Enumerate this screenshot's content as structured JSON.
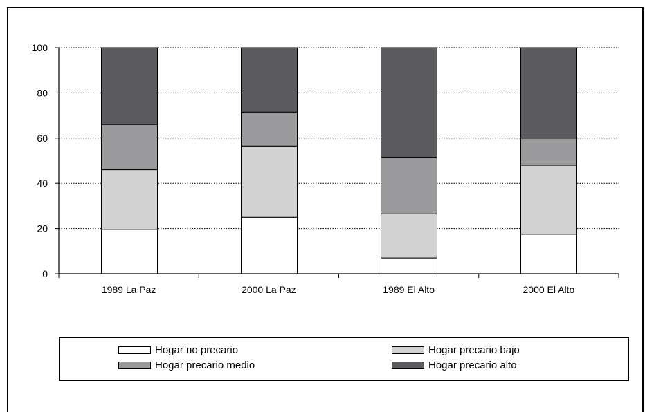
{
  "chart_data": {
    "type": "bar",
    "stacked": true,
    "categories": [
      "1989 La Paz",
      "2000 La Paz",
      "1989 El Alto",
      "2000 El Alto"
    ],
    "series": [
      {
        "name": "Hogar no precario",
        "color": "#ffffff",
        "values": [
          19.5,
          25,
          7,
          17.5
        ]
      },
      {
        "name": "Hogar precario bajo",
        "color": "#d3d3d3",
        "values": [
          26.5,
          31.5,
          19.5,
          30.5
        ]
      },
      {
        "name": "Hogar precario medio",
        "color": "#9b9b9d",
        "values": [
          20,
          15,
          25,
          12
        ]
      },
      {
        "name": "Hogar precario alto",
        "color": "#5c5b60",
        "values": [
          34,
          28.5,
          48.5,
          40
        ]
      }
    ],
    "yticks": [
      0,
      20,
      40,
      60,
      80,
      100
    ],
    "ylim": [
      0,
      100
    ],
    "title": "",
    "xlabel": "",
    "ylabel": "",
    "grid": "horizontal-dotted",
    "legend_position": "bottom"
  }
}
